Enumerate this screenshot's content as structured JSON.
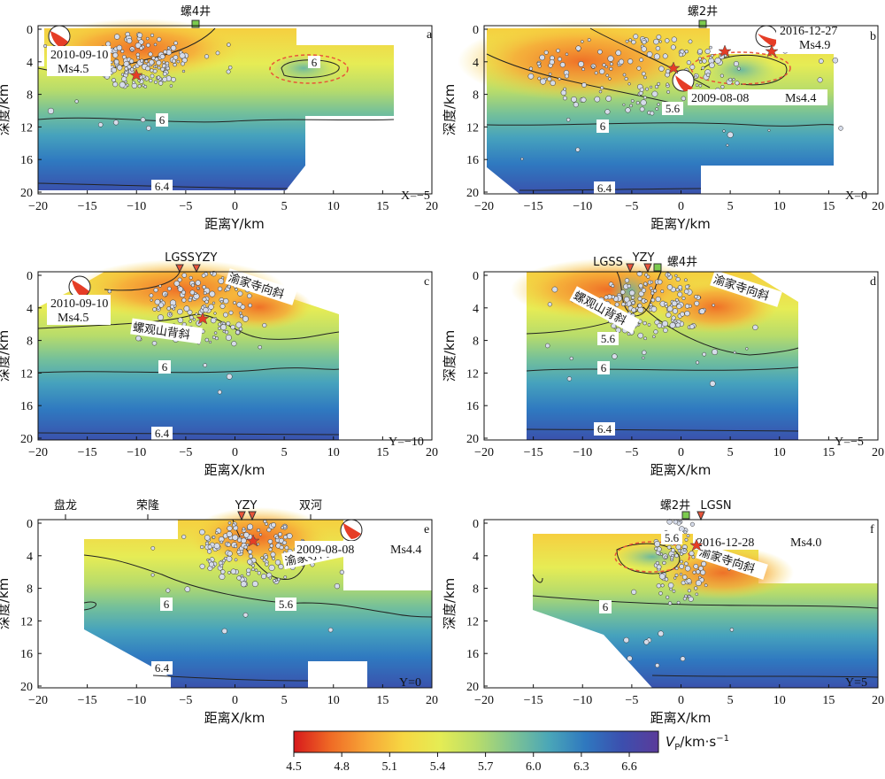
{
  "colorbar": {
    "title_main": "V",
    "title_sub": "P",
    "title_unit": "/km·s",
    "title_sup": "−1",
    "ticks": [
      "4.5",
      "4.8",
      "5.1",
      "5.4",
      "5.7",
      "6.0",
      "6.3",
      "6.6"
    ],
    "colors": [
      "#d7191c",
      "#ef6a25",
      "#f7a637",
      "#f6d742",
      "#e5ec54",
      "#b9dd6a",
      "#7fc493",
      "#4aa6b8",
      "#2f78bf",
      "#3c4fae",
      "#5b3b9a"
    ]
  },
  "ytick_labels": [
    "0",
    "4",
    "8",
    "12",
    "16",
    "20"
  ],
  "xtick_labels": [
    "−20",
    "−15",
    "−10",
    "−5",
    "0",
    "5",
    "10",
    "15",
    "20"
  ],
  "ylabel": "深度/km",
  "contour_labels": {
    "c56": "5.6",
    "c6": "6",
    "c64": "6.4"
  },
  "structure_labels": {
    "yujiasi": "渝家寺向斜",
    "luoguanshan": "螺观山背斜"
  },
  "panels": [
    {
      "id": "a",
      "letter": "a",
      "xlabel": "距离Y/km",
      "section": "X=−5",
      "wells": [
        "螺4井"
      ],
      "stations": [],
      "events": [
        {
          "date": "2010-09-10",
          "mag": "Ms4.5"
        }
      ]
    },
    {
      "id": "b",
      "letter": "b",
      "xlabel": "距离Y/km",
      "section": "X=0",
      "wells": [
        "螺2井"
      ],
      "stations": [],
      "events": [
        {
          "date": "2016-12-27",
          "mag": "Ms4.9"
        },
        {
          "date": "2009-08-08",
          "mag": "Ms4.4"
        }
      ]
    },
    {
      "id": "c",
      "letter": "c",
      "xlabel": "距离X/km",
      "section": "Y=−10",
      "wells": [],
      "stations": [
        "LGSS",
        "YZY"
      ],
      "events": [
        {
          "date": "2010-09-10",
          "mag": "Ms4.5"
        }
      ]
    },
    {
      "id": "d",
      "letter": "d",
      "xlabel": "距离X/km",
      "section": "Y=−5",
      "wells": [
        "螺4井"
      ],
      "stations": [
        "LGSS",
        "YZY"
      ],
      "events": []
    },
    {
      "id": "e",
      "letter": "e",
      "xlabel": "距离X/km",
      "section": "Y=0",
      "wells": [],
      "stations": [
        "YZY"
      ],
      "places": [
        "盘龙",
        "荣隆",
        "双河"
      ],
      "events": [
        {
          "date": "2009-08-08",
          "mag": "Ms4.4"
        }
      ]
    },
    {
      "id": "f",
      "letter": "f",
      "xlabel": "距离X/km",
      "section": "Y=5",
      "wells": [
        "螺2井"
      ],
      "stations": [
        "LGSN"
      ],
      "events": [
        {
          "date": "2016-12-28",
          "mag": "Ms4.0"
        }
      ]
    }
  ]
}
